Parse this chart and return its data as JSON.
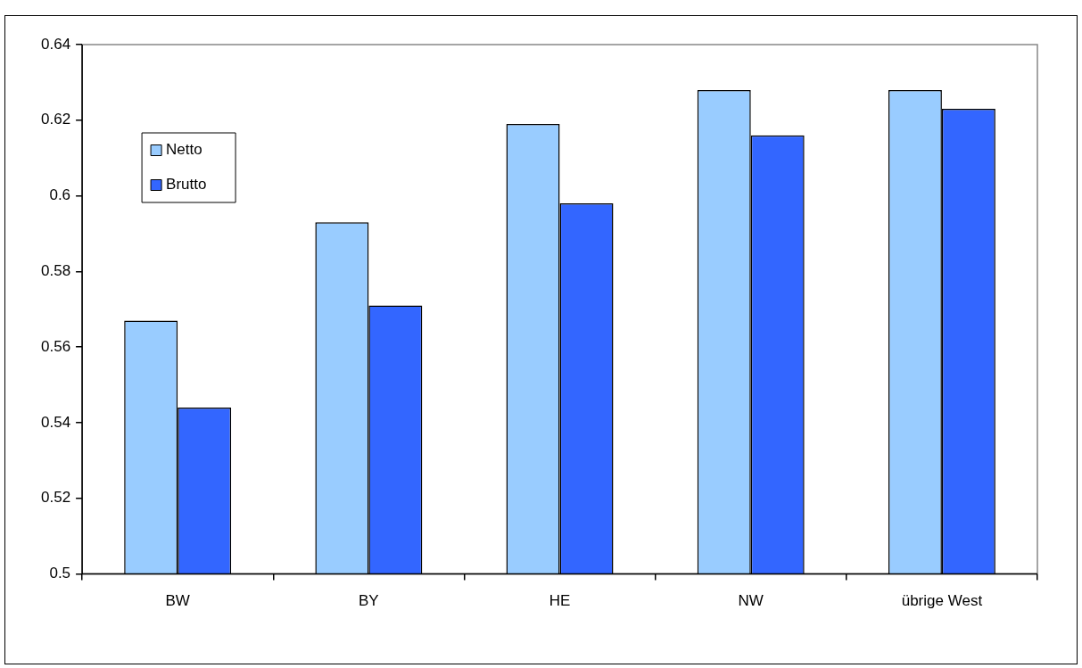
{
  "chart_data": {
    "type": "bar",
    "categories": [
      "BW",
      "BY",
      "HE",
      "NW",
      "übrige West"
    ],
    "series": [
      {
        "name": "Netto",
        "color": "#99ccff",
        "values": [
          0.567,
          0.593,
          0.619,
          0.628,
          0.628
        ]
      },
      {
        "name": "Brutto",
        "color": "#3366ff",
        "values": [
          0.544,
          0.571,
          0.598,
          0.616,
          0.623
        ]
      }
    ],
    "ylim": [
      0.5,
      0.64
    ],
    "yticks": [
      0.5,
      0.52,
      0.54,
      0.56,
      0.58,
      0.6,
      0.62,
      0.64
    ],
    "grid": false,
    "legend": "top left"
  }
}
